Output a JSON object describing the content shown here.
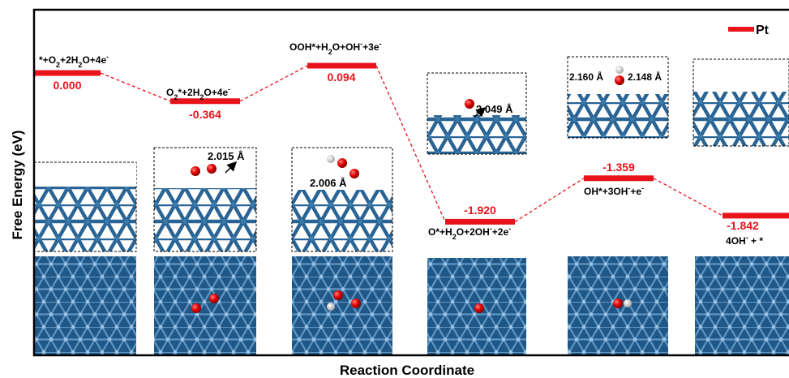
{
  "chart_data": {
    "type": "free-energy-diagram",
    "xlabel": "Reaction Coordinate",
    "ylabel": "Free Energy (eV)",
    "legend": {
      "label": "Pt",
      "color": "#e8131b",
      "position": "top-right"
    },
    "steps": [
      {
        "state": "*+O2+2H2O+4e-",
        "energy": 0.0,
        "energy_label": "0.000"
      },
      {
        "state": "O2*+2H2O+4e-",
        "energy": -0.364,
        "energy_label": "-0.364",
        "bond_label": "2.015 Å"
      },
      {
        "state": "OOH*+H2O+OH-+3e-",
        "energy": 0.094,
        "energy_label": "0.094",
        "bond_label": "2.006 Å"
      },
      {
        "state": "O*+H2O+2OH-+2e-",
        "energy": -1.92,
        "energy_label": "-1.920",
        "bond_label": "2.049 Å"
      },
      {
        "state": "OH*+3OH-+e-",
        "energy": -1.359,
        "energy_label": "-1.359",
        "bond_labels": [
          "2.160 Å",
          "2.148 Å"
        ]
      },
      {
        "state": "4OH- + *",
        "energy": -1.842,
        "energy_label": "-1.842"
      }
    ]
  },
  "colors": {
    "level": "#e8131b",
    "connector": "#e8131b",
    "atom_pt": "#2a6494",
    "atom_o": "#e00000",
    "atom_h": "#f2f2f2"
  }
}
